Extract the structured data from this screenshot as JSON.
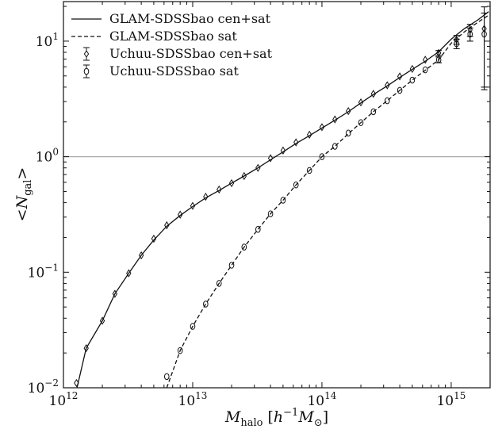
{
  "chart_data": {
    "type": "line",
    "title": "",
    "xlabel": "M_halo [h^-1 M_⊙]",
    "ylabel": "<N_gal>",
    "xscale": "log",
    "yscale": "log",
    "xlim": [
      1000000000000.0,
      2000000000000000.0
    ],
    "ylim": [
      0.01,
      22
    ],
    "x_ticks": [
      {
        "value": 1000000000000.0,
        "base": "10",
        "exp": "12"
      },
      {
        "value": 10000000000000.0,
        "base": "10",
        "exp": "13"
      },
      {
        "value": 100000000000000.0,
        "base": "10",
        "exp": "14"
      },
      {
        "value": 1000000000000000.0,
        "base": "10",
        "exp": "15"
      }
    ],
    "y_ticks": [
      {
        "value": 0.01,
        "base": "10",
        "exp": "−2"
      },
      {
        "value": 0.1,
        "base": "10",
        "exp": "−1"
      },
      {
        "value": 1,
        "base": "10",
        "exp": "0"
      },
      {
        "value": 10,
        "base": "10",
        "exp": "1"
      }
    ],
    "reference_line": {
      "y": 1,
      "color": "#aaaaaa"
    },
    "legend_position": "top-left",
    "grid": false,
    "series": [
      {
        "name": "GLAM-SDSSbao cen+sat",
        "style": "solid",
        "kind": "line",
        "x": [
          1260000000000.0,
          1500000000000.0,
          2000000000000.0,
          2500000000000.0,
          3200000000000.0,
          4000000000000.0,
          5000000000000.0,
          6300000000000.0,
          8000000000000.0,
          10000000000000.0,
          12600000000000.0,
          16000000000000.0,
          20000000000000.0,
          25000000000000.0,
          32000000000000.0,
          40000000000000.0,
          50000000000000.0,
          63000000000000.0,
          80000000000000.0,
          100000000000000.0,
          126000000000000.0,
          160000000000000.0,
          200000000000000.0,
          250000000000000.0,
          320000000000000.0,
          400000000000000.0,
          500000000000000.0,
          630000000000000.0,
          800000000000000.0,
          1000000000000000.0,
          1260000000000000.0,
          1600000000000000.0,
          1950000000000000.0
        ],
        "y": [
          0.0095,
          0.022,
          0.038,
          0.065,
          0.098,
          0.14,
          0.19,
          0.25,
          0.31,
          0.37,
          0.44,
          0.51,
          0.59,
          0.68,
          0.8,
          0.94,
          1.1,
          1.3,
          1.52,
          1.77,
          2.07,
          2.45,
          2.92,
          3.45,
          4.1,
          4.85,
          5.7,
          6.7,
          8.1,
          10.4,
          12.8,
          15.2,
          18.0
        ]
      },
      {
        "name": "GLAM-SDSSbao sat",
        "style": "dashed",
        "kind": "line",
        "x": [
          6300000000000.0,
          8000000000000.0,
          10000000000000.0,
          12600000000000.0,
          16000000000000.0,
          20000000000000.0,
          25000000000000.0,
          32000000000000.0,
          40000000000000.0,
          50000000000000.0,
          63000000000000.0,
          80000000000000.0,
          100000000000000.0,
          126000000000000.0,
          160000000000000.0,
          200000000000000.0,
          250000000000000.0,
          320000000000000.0,
          400000000000000.0,
          500000000000000.0,
          630000000000000.0,
          800000000000000.0,
          1000000000000000.0,
          1260000000000000.0,
          1600000000000000.0,
          1950000000000000.0
        ],
        "y": [
          0.01,
          0.021,
          0.034,
          0.053,
          0.08,
          0.115,
          0.165,
          0.235,
          0.32,
          0.42,
          0.57,
          0.76,
          1.0,
          1.23,
          1.58,
          1.97,
          2.45,
          3.05,
          3.75,
          4.6,
          5.6,
          6.9,
          9.6,
          12.0,
          14.5,
          16.8
        ]
      },
      {
        "name": "Uchuu-SDSSbao cen+sat",
        "style": "none",
        "kind": "markers",
        "marker": "diamond",
        "x": [
          1260000000000.0,
          1500000000000.0,
          2000000000000.0,
          2500000000000.0,
          3200000000000.0,
          4000000000000.0,
          5000000000000.0,
          6300000000000.0,
          8000000000000.0,
          10000000000000.0,
          12600000000000.0,
          16000000000000.0,
          20000000000000.0,
          25000000000000.0,
          32000000000000.0,
          40000000000000.0,
          50000000000000.0,
          63000000000000.0,
          80000000000000.0,
          100000000000000.0,
          126000000000000.0,
          160000000000000.0,
          200000000000000.0,
          250000000000000.0,
          320000000000000.0,
          400000000000000.0,
          500000000000000.0,
          630000000000000.0,
          800000000000000.0,
          1100000000000000.0,
          1400000000000000.0,
          1800000000000000.0
        ],
        "y": [
          0.011,
          0.022,
          0.038,
          0.065,
          0.098,
          0.14,
          0.195,
          0.255,
          0.315,
          0.375,
          0.45,
          0.52,
          0.59,
          0.68,
          0.8,
          0.97,
          1.13,
          1.33,
          1.55,
          1.8,
          2.1,
          2.48,
          2.95,
          3.5,
          4.15,
          4.95,
          5.75,
          6.9,
          7.9,
          10.3,
          12.5,
          12.8
        ],
        "err_low": [
          0,
          0,
          0,
          0,
          0,
          0,
          0,
          0,
          0,
          0,
          0,
          0,
          0,
          0,
          0,
          0,
          0,
          0,
          0,
          0,
          0,
          0,
          0,
          0,
          0,
          0,
          0,
          0,
          0.4,
          0.9,
          1.5,
          9.0
        ],
        "err_high": [
          0,
          0,
          0,
          0,
          0,
          0,
          0,
          0,
          0,
          0,
          0,
          0,
          0,
          0,
          0,
          0,
          0,
          0,
          0,
          0,
          0,
          0,
          0,
          0,
          0,
          0,
          0,
          0,
          0.4,
          0.9,
          1.5,
          7.0
        ]
      },
      {
        "name": "Uchuu-SDSSbao sat",
        "style": "none",
        "kind": "markers",
        "marker": "circle",
        "x": [
          6300000000000.0,
          8000000000000.0,
          10000000000000.0,
          12600000000000.0,
          16000000000000.0,
          20000000000000.0,
          25000000000000.0,
          32000000000000.0,
          40000000000000.0,
          50000000000000.0,
          63000000000000.0,
          80000000000000.0,
          100000000000000.0,
          126000000000000.0,
          160000000000000.0,
          200000000000000.0,
          250000000000000.0,
          320000000000000.0,
          400000000000000.0,
          500000000000000.0,
          630000000000000.0,
          800000000000000.0,
          1100000000000000.0,
          1400000000000000.0,
          1800000000000000.0
        ],
        "y": [
          0.0125,
          0.021,
          0.034,
          0.053,
          0.08,
          0.115,
          0.165,
          0.235,
          0.32,
          0.42,
          0.57,
          0.76,
          1.0,
          1.23,
          1.6,
          1.97,
          2.45,
          3.05,
          3.75,
          4.6,
          5.65,
          6.9,
          9.5,
          11.5,
          11.5
        ],
        "err_low": [
          0,
          0,
          0,
          0,
          0,
          0,
          0,
          0,
          0,
          0,
          0,
          0,
          0,
          0,
          0,
          0,
          0,
          0,
          0,
          0,
          0,
          0.4,
          0.9,
          1.5,
          7.5
        ],
        "err_high": [
          0,
          0,
          0,
          0,
          0,
          0,
          0,
          0,
          0,
          0,
          0,
          0,
          0,
          0,
          0,
          0,
          0,
          0,
          0,
          0,
          0,
          0.4,
          0.9,
          1.5,
          6.0
        ]
      }
    ]
  }
}
